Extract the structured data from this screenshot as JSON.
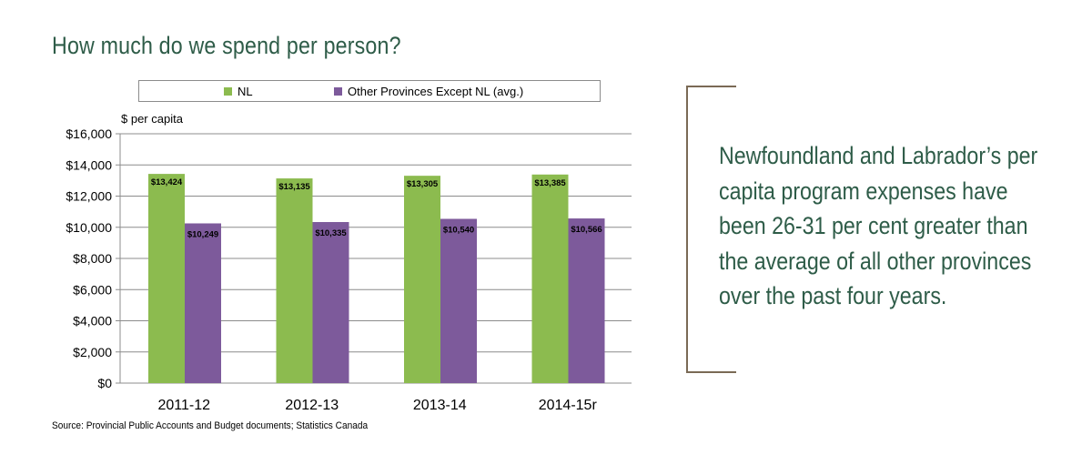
{
  "title": "How much do we spend per person?",
  "callout": "Newfoundland and Labrador’s per capita program expenses have been 26-31 per cent greater than the average of all other provinces over the past four years.",
  "source": "Source: Provincial Public Accounts and Budget documents; Statistics Canada",
  "colors": {
    "nl": "#8cbb4f",
    "other": "#7d5a9b",
    "heading": "#2e5c48",
    "bracket": "#7a6a55"
  },
  "chart_data": {
    "type": "bar",
    "title": "How much do we spend per person?",
    "ylabel": "$ per capita",
    "xlabel": "",
    "categories": [
      "2011-12",
      "2012-13",
      "2013-14",
      "2014-15r"
    ],
    "series": [
      {
        "name": "NL",
        "values": [
          13424,
          13135,
          13305,
          13385
        ],
        "labels": [
          "$13,424",
          "$13,135",
          "$13,305",
          "$13,385"
        ]
      },
      {
        "name": "Other Provinces Except NL (avg.)",
        "values": [
          10249,
          10335,
          10540,
          10566
        ],
        "labels": [
          "$10,249",
          "$10,335",
          "$10,540",
          "$10,566"
        ]
      }
    ],
    "ylim": [
      0,
      16000
    ],
    "yticks": [
      0,
      2000,
      4000,
      6000,
      8000,
      10000,
      12000,
      14000,
      16000
    ],
    "ytick_labels": [
      "$0",
      "$2,000",
      "$4,000",
      "$6,000",
      "$8,000",
      "$10,000",
      "$12,000",
      "$14,000",
      "$16,000"
    ],
    "grid": true,
    "legend": "top"
  }
}
